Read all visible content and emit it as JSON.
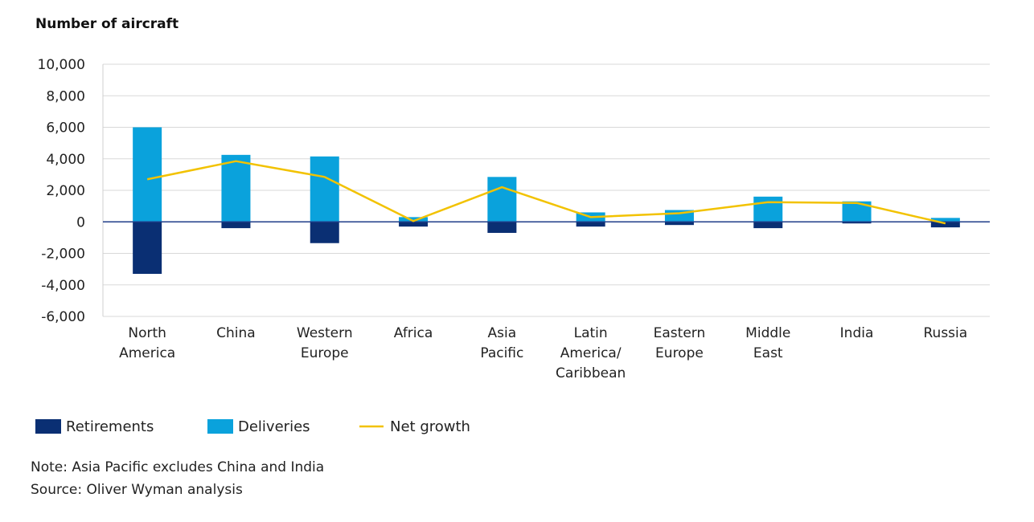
{
  "chart_data": {
    "type": "bar",
    "title": "Number of aircraft",
    "categories": [
      [
        "North",
        "America"
      ],
      [
        "China"
      ],
      [
        "Western",
        "Europe"
      ],
      [
        "Africa"
      ],
      [
        "Asia",
        "Pacific"
      ],
      [
        "Latin",
        "America/",
        "Caribbean"
      ],
      [
        "Eastern",
        "Europe"
      ],
      [
        "Middle",
        "East"
      ],
      [
        "India"
      ],
      [
        "Russia"
      ]
    ],
    "series": [
      {
        "name": "Retirements",
        "type": "bar",
        "color": "#0a2f73",
        "values": [
          -3300,
          -400,
          -1350,
          -300,
          -700,
          -300,
          -200,
          -400,
          -100,
          -350
        ]
      },
      {
        "name": "Deliveries",
        "type": "bar",
        "color": "#0aa2dc",
        "values": [
          6000,
          4250,
          4150,
          300,
          2850,
          600,
          750,
          1600,
          1300,
          250
        ]
      },
      {
        "name": "Net growth",
        "type": "line",
        "color": "#f2c200",
        "values": [
          2700,
          3850,
          2850,
          50,
          2200,
          300,
          550,
          1250,
          1200,
          -100
        ]
      }
    ],
    "ylim": [
      -6000,
      10000
    ],
    "yticks": [
      10000,
      8000,
      6000,
      4000,
      2000,
      0,
      -2000,
      -4000,
      -6000
    ],
    "ytick_labels": [
      "10,000",
      "8,000",
      "6,000",
      "4,000",
      "2,000",
      "0",
      "-2,000",
      "-4,000",
      "-6,000"
    ],
    "grid": true,
    "legend_position": "bottom-left",
    "notes": [
      "Note: Asia Pacific excludes China and India",
      "Source: Oliver Wyman analysis"
    ]
  }
}
